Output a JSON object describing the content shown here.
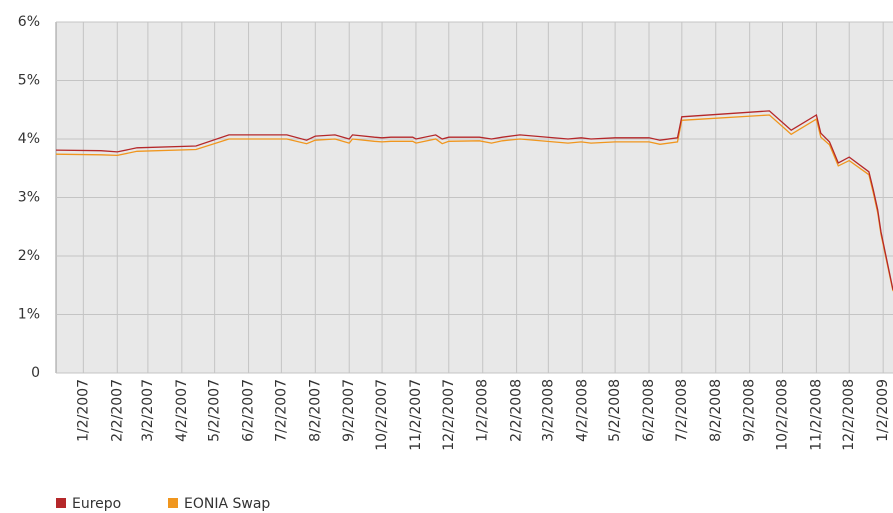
{
  "chart_data": {
    "type": "line",
    "x": [
      "12/8/2006",
      "1/18/2007",
      "2/2/2007",
      "2/20/2007",
      "4/15/2007",
      "5/15/2007",
      "7/7/2007",
      "7/25/2007",
      "8/2/2007",
      "8/20/2007",
      "9/2/2007",
      "9/5/2007",
      "9/25/2007",
      "10/2/2007",
      "10/10/2007",
      "10/30/2007",
      "11/2/2007",
      "11/20/2007",
      "11/26/2007",
      "12/2/2007",
      "12/30/2007",
      "1/10/2008",
      "1/20/2008",
      "2/5/2008",
      "3/20/2008",
      "4/1/2008",
      "4/10/2008",
      "5/2/2008",
      "6/2/2008",
      "6/12/2008",
      "6/28/2008",
      "7/2/2008",
      "9/20/2008",
      "10/10/2008",
      "11/2/2008",
      "11/6/2008",
      "11/14/2008",
      "11/22/2008",
      "12/2/2008",
      "12/20/2008",
      "12/24/2008",
      "12/28/2008",
      "12/31/2008",
      "1/11/2009"
    ],
    "series": [
      {
        "name": "Eurepo",
        "color": "#b5282a",
        "values": [
          3.81,
          3.8,
          3.78,
          3.85,
          3.88,
          4.07,
          4.07,
          3.98,
          4.05,
          4.07,
          4.0,
          4.07,
          4.03,
          4.02,
          4.03,
          4.03,
          4.0,
          4.07,
          4.0,
          4.03,
          4.03,
          4.0,
          4.03,
          4.07,
          4.0,
          4.02,
          4.0,
          4.02,
          4.02,
          3.98,
          4.02,
          4.38,
          4.48,
          4.15,
          4.41,
          4.1,
          3.95,
          3.59,
          3.69,
          3.44,
          3.13,
          2.79,
          2.41,
          1.42
        ]
      },
      {
        "name": "EONIA Swap",
        "color": "#f0961e",
        "values": [
          3.74,
          3.73,
          3.72,
          3.79,
          3.82,
          4.0,
          4.0,
          3.92,
          3.98,
          4.0,
          3.93,
          4.0,
          3.96,
          3.95,
          3.96,
          3.96,
          3.93,
          4.0,
          3.92,
          3.96,
          3.97,
          3.93,
          3.97,
          4.0,
          3.93,
          3.95,
          3.93,
          3.95,
          3.95,
          3.91,
          3.95,
          4.32,
          4.41,
          4.08,
          4.34,
          4.03,
          3.9,
          3.54,
          3.63,
          3.39,
          3.08,
          2.74,
          2.37,
          1.4
        ]
      }
    ],
    "xlim": [
      "12/8/2006",
      "1/11/2009"
    ],
    "xticks": [
      "1/2/2007",
      "2/2/2007",
      "3/2/2007",
      "4/2/2007",
      "5/2/2007",
      "6/2/2007",
      "7/2/2007",
      "8/2/2007",
      "9/2/2007",
      "10/2/2007",
      "11/2/2007",
      "12/2/2007",
      "1/2/2008",
      "2/2/2008",
      "3/2/2008",
      "4/2/2008",
      "5/2/2008",
      "6/2/2008",
      "7/2/2008",
      "8/2/2008",
      "9/2/2008",
      "10/2/2008",
      "11/2/2008",
      "12/2/2008",
      "1/2/2009"
    ],
    "ylim": [
      0,
      6
    ],
    "yticks": [
      0,
      {
        "value": 1,
        "label": "1%"
      },
      {
        "value": 2,
        "label": "2%"
      },
      {
        "value": 3,
        "label": "3%"
      },
      {
        "value": 4,
        "label": "4%"
      },
      {
        "value": 5,
        "label": "5%"
      },
      {
        "value": 6,
        "label": "6%"
      }
    ],
    "grid": true
  }
}
